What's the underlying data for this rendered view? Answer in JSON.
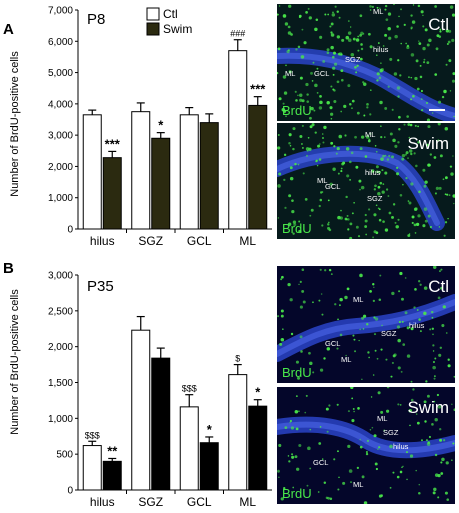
{
  "figure": {
    "panels": [
      {
        "letter": "A",
        "age": "P8",
        "legend": [
          "Ctl",
          "Swim"
        ],
        "micrographs": [
          {
            "corner_label": "Ctl",
            "stain": "BrdU",
            "regions": [
              "ML",
              "hilus",
              "SGZ",
              "GCL",
              "ML"
            ],
            "scale_bar": true
          },
          {
            "corner_label": "Swim",
            "stain": "BrdU",
            "regions": [
              "ML",
              "hilus",
              "ML",
              "GCL",
              "SGZ"
            ],
            "scale_bar": false
          }
        ]
      },
      {
        "letter": "B",
        "age": "P35",
        "micrographs": [
          {
            "corner_label": "Ctl",
            "stain": "BrdU",
            "regions": [
              "ML",
              "hilus",
              "SGZ",
              "GCL",
              "ML"
            ],
            "scale_bar": false
          },
          {
            "corner_label": "Swim",
            "stain": "BrdU",
            "regions": [
              "ML",
              "SGZ",
              "hilus",
              "GCL",
              "ML"
            ],
            "scale_bar": false
          }
        ]
      }
    ]
  },
  "colors": {
    "ctl": "#ffffff",
    "swim_a": "#2b2a10",
    "swim_b": "#000000",
    "stain_green": "#49e84a",
    "tissue_blue": "#2a44c8"
  },
  "chart_data": [
    {
      "type": "bar",
      "ylabel": "Number of BrdU-positive cells",
      "ylim": [
        0,
        7000
      ],
      "yticks": [
        "0",
        "1,000",
        "2,000",
        "3,000",
        "4,000",
        "5,000",
        "6,000",
        "7,000"
      ],
      "categories": [
        "hilus",
        "SGZ",
        "GCL",
        "ML"
      ],
      "series": [
        {
          "name": "Ctl",
          "values": [
            3650,
            3750,
            3650,
            5700
          ],
          "errors": [
            150,
            280,
            230,
            350
          ]
        },
        {
          "name": "Swim",
          "values": [
            2280,
            2900,
            3400,
            3950
          ],
          "errors": [
            200,
            180,
            280,
            280
          ]
        }
      ],
      "annotations": [
        {
          "category": "hilus",
          "series": "Swim",
          "text": "***"
        },
        {
          "category": "SGZ",
          "series": "Swim",
          "text": "*"
        },
        {
          "category": "ML",
          "series": "Ctl",
          "text": "###"
        },
        {
          "category": "ML",
          "series": "Swim",
          "text": "***"
        }
      ],
      "grid": false
    },
    {
      "type": "bar",
      "ylabel": "Number of BrdU-positive cells",
      "ylim": [
        0,
        3000
      ],
      "yticks": [
        "0",
        "500",
        "1,000",
        "1,500",
        "2,000",
        "2,500",
        "3,000"
      ],
      "categories": [
        "hilus",
        "SGZ",
        "GCL",
        "ML"
      ],
      "series": [
        {
          "name": "Ctl",
          "values": [
            620,
            2230,
            1160,
            1610
          ],
          "errors": [
            60,
            190,
            170,
            140
          ]
        },
        {
          "name": "Swim",
          "values": [
            400,
            1840,
            660,
            1170
          ],
          "errors": [
            40,
            140,
            80,
            90
          ]
        }
      ],
      "annotations": [
        {
          "category": "hilus",
          "series": "Ctl",
          "text": "$$$"
        },
        {
          "category": "hilus",
          "series": "Swim",
          "text": "**"
        },
        {
          "category": "GCL",
          "series": "Ctl",
          "text": "$$$"
        },
        {
          "category": "GCL",
          "series": "Swim",
          "text": "*"
        },
        {
          "category": "ML",
          "series": "Ctl",
          "text": "$"
        },
        {
          "category": "ML",
          "series": "Swim",
          "text": "*"
        }
      ],
      "grid": false
    }
  ]
}
